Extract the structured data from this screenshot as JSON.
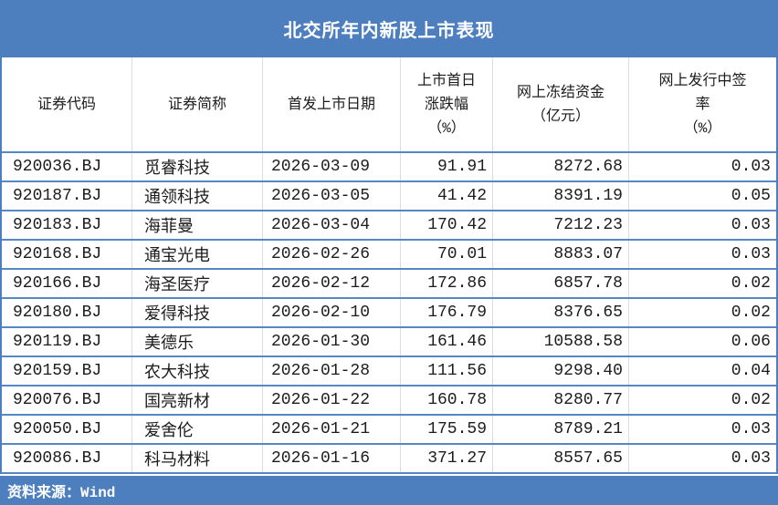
{
  "title": "北交所年内新股上市表现",
  "source_note": "资料来源：Wind",
  "colors": {
    "bar_blue": "#4d7ebe",
    "row_line_blue": "#5587c4",
    "grid_gray": "#dcdcdc"
  },
  "table": {
    "columns": [
      {
        "key": "code",
        "label": "证券代码"
      },
      {
        "key": "name",
        "label": "证券简称"
      },
      {
        "key": "list-date",
        "label": "首发上市日期"
      },
      {
        "key": "first-day-change-pct",
        "label": "上市首日\n涨跌幅\n（%）"
      },
      {
        "key": "frozen-funds",
        "label": "网上冻结资金\n（亿元）"
      },
      {
        "key": "win-rate-pct",
        "label": "网上发行中签\n率\n（%）"
      }
    ]
  },
  "chart_data": {
    "type": "table",
    "title": "北交所年内新股上市表现",
    "source": "资料来源：Wind",
    "columns": [
      "证券代码",
      "证券简称",
      "首发上市日期",
      "上市首日涨跌幅（%）",
      "网上冻结资金（亿元）",
      "网上发行中签率（%）"
    ],
    "rows": [
      [
        "920036.BJ",
        "觅睿科技",
        "2026-03-09",
        "91.91",
        "8272.68",
        "0.03"
      ],
      [
        "920187.BJ",
        "通领科技",
        "2026-03-05",
        "41.42",
        "8391.19",
        "0.05"
      ],
      [
        "920183.BJ",
        "海菲曼",
        "2026-03-04",
        "170.42",
        "7212.23",
        "0.03"
      ],
      [
        "920168.BJ",
        "通宝光电",
        "2026-02-26",
        "70.01",
        "8883.07",
        "0.03"
      ],
      [
        "920166.BJ",
        "海圣医疗",
        "2026-02-12",
        "172.86",
        "6857.78",
        "0.02"
      ],
      [
        "920180.BJ",
        "爱得科技",
        "2026-02-10",
        "176.79",
        "8376.65",
        "0.02"
      ],
      [
        "920119.BJ",
        "美德乐",
        "2026-01-30",
        "161.46",
        "10588.58",
        "0.06"
      ],
      [
        "920159.BJ",
        "农大科技",
        "2026-01-28",
        "111.56",
        "9298.40",
        "0.04"
      ],
      [
        "920076.BJ",
        "国亮新材",
        "2026-01-22",
        "160.78",
        "8280.77",
        "0.02"
      ],
      [
        "920050.BJ",
        "爱舍伦",
        "2026-01-21",
        "175.59",
        "8789.21",
        "0.03"
      ],
      [
        "920086.BJ",
        "科马材料",
        "2026-01-16",
        "371.27",
        "8557.65",
        "0.03"
      ]
    ]
  }
}
